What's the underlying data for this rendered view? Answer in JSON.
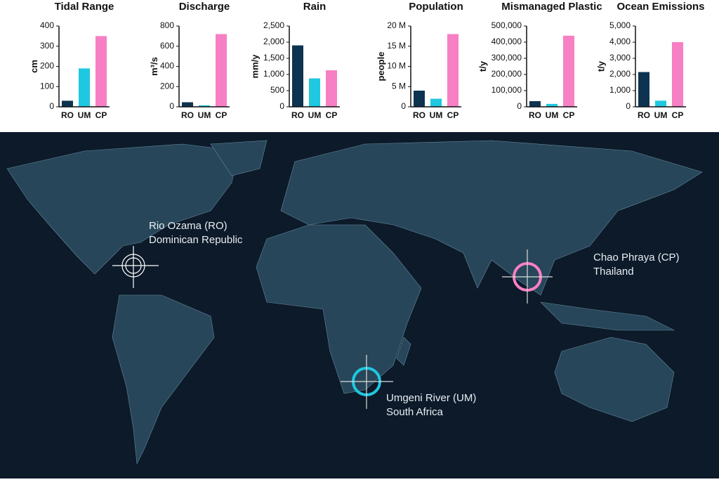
{
  "chart_data": [
    {
      "type": "bar",
      "title": "Tidal Range",
      "ylabel": "cm",
      "categories": [
        "RO",
        "UM",
        "CP"
      ],
      "values": [
        30,
        190,
        350
      ],
      "colors": [
        "#0d3350",
        "#1ec8e0",
        "#f77fc4"
      ],
      "ylim": [
        0,
        400
      ],
      "yticks": [
        0,
        100,
        200,
        300,
        400
      ]
    },
    {
      "type": "bar",
      "title": "Discharge",
      "ylabel": "m³/s",
      "categories": [
        "RO",
        "UM",
        "CP"
      ],
      "values": [
        45,
        15,
        720
      ],
      "colors": [
        "#0d3350",
        "#1ec8e0",
        "#f77fc4"
      ],
      "ylim": [
        0,
        800
      ],
      "yticks": [
        0,
        200,
        400,
        600,
        800
      ]
    },
    {
      "type": "bar",
      "title": "Rain",
      "ylabel": "mm/y",
      "categories": [
        "RO",
        "UM",
        "CP"
      ],
      "values": [
        1900,
        880,
        1130
      ],
      "colors": [
        "#0d3350",
        "#1ec8e0",
        "#f77fc4"
      ],
      "ylim": [
        0,
        2500
      ],
      "yticks": [
        0,
        500,
        {
          "value": 1000,
          "label": "1,000"
        },
        {
          "value": 1500,
          "label": "1,500"
        },
        {
          "value": 2000,
          "label": "2,000"
        },
        {
          "value": 2500,
          "label": "2,500"
        }
      ]
    },
    {
      "type": "bar",
      "title": "Population",
      "ylabel": "people",
      "categories": [
        "RO",
        "UM",
        "CP"
      ],
      "values": [
        4000000,
        2000000,
        18000000
      ],
      "colors": [
        "#0d3350",
        "#1ec8e0",
        "#f77fc4"
      ],
      "ylim": [
        0,
        20000000
      ],
      "yticks": [
        0,
        {
          "value": 5000000,
          "label": "5 M"
        },
        {
          "value": 10000000,
          "label": "10 M"
        },
        {
          "value": 15000000,
          "label": "15 M"
        },
        {
          "value": 20000000,
          "label": "20 M"
        }
      ]
    },
    {
      "type": "bar",
      "title": "Mismanaged Plastic",
      "ylabel": "t/y",
      "categories": [
        "RO",
        "UM",
        "CP"
      ],
      "values": [
        35000,
        18000,
        440000
      ],
      "colors": [
        "#0d3350",
        "#1ec8e0",
        "#f77fc4"
      ],
      "ylim": [
        0,
        500000
      ],
      "yticks": [
        0,
        {
          "value": 100000,
          "label": "100,000"
        },
        {
          "value": 200000,
          "label": "200,000"
        },
        {
          "value": 300000,
          "label": "300,000"
        },
        {
          "value": 400000,
          "label": "400,000"
        },
        {
          "value": 500000,
          "label": "500,000"
        }
      ]
    },
    {
      "type": "bar",
      "title": "Ocean Emissions",
      "ylabel": "t/y",
      "categories": [
        "RO",
        "UM",
        "CP"
      ],
      "values": [
        2150,
        380,
        4000
      ],
      "colors": [
        "#0d3350",
        "#1ec8e0",
        "#f77fc4"
      ],
      "ylim": [
        0,
        5000
      ],
      "yticks": [
        0,
        {
          "value": 1000,
          "label": "1,000"
        },
        {
          "value": 2000,
          "label": "2,000"
        },
        {
          "value": 3000,
          "label": "3,000"
        },
        {
          "value": 4000,
          "label": "4,000"
        },
        {
          "value": 5000,
          "label": "5,000"
        }
      ]
    }
  ],
  "map": {
    "sites": [
      {
        "name": "Rio Ozama (RO)",
        "country": "Dominican Republic"
      },
      {
        "name": "Chao Phraya (CP)",
        "country": "Thailand"
      },
      {
        "name": "Umgeni River (UM)",
        "country": "South Africa"
      }
    ]
  }
}
